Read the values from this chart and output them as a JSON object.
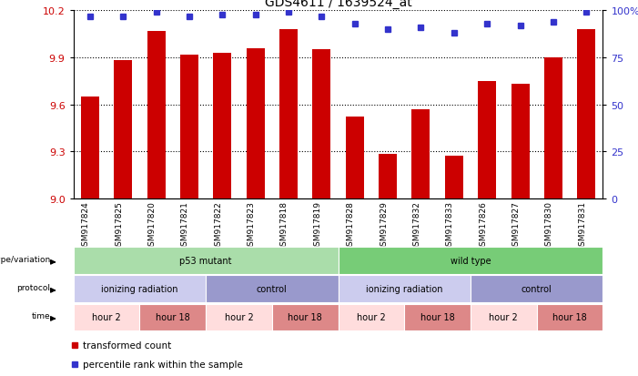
{
  "title": "GDS4611 / 1639524_at",
  "samples": [
    "GSM917824",
    "GSM917825",
    "GSM917820",
    "GSM917821",
    "GSM917822",
    "GSM917823",
    "GSM917818",
    "GSM917819",
    "GSM917828",
    "GSM917829",
    "GSM917832",
    "GSM917833",
    "GSM917826",
    "GSM917827",
    "GSM917830",
    "GSM917831"
  ],
  "bar_values": [
    9.65,
    9.88,
    10.07,
    9.92,
    9.93,
    9.96,
    10.08,
    9.95,
    9.52,
    9.28,
    9.57,
    9.27,
    9.75,
    9.73,
    9.9,
    10.08
  ],
  "percentile_values": [
    97,
    97,
    99,
    97,
    98,
    98,
    99,
    97,
    93,
    90,
    91,
    88,
    93,
    92,
    94,
    99
  ],
  "y_min": 9.0,
  "y_max": 10.2,
  "y_ticks": [
    9.0,
    9.3,
    9.6,
    9.9,
    10.2
  ],
  "right_y_ticks": [
    0,
    25,
    50,
    75,
    100
  ],
  "right_y_labels": [
    "0",
    "25",
    "50",
    "75",
    "100%"
  ],
  "bar_color": "#cc0000",
  "dot_color": "#3333cc",
  "background_color": "#ffffff",
  "genotype_groups": [
    {
      "text": "p53 mutant",
      "start": 0,
      "end": 8,
      "color": "#aaddaa"
    },
    {
      "text": "wild type",
      "start": 8,
      "end": 16,
      "color": "#77cc77"
    }
  ],
  "protocol_groups": [
    {
      "text": "ionizing radiation",
      "start": 0,
      "end": 4,
      "color": "#ccccee"
    },
    {
      "text": "control",
      "start": 4,
      "end": 8,
      "color": "#9999cc"
    },
    {
      "text": "ionizing radiation",
      "start": 8,
      "end": 12,
      "color": "#ccccee"
    },
    {
      "text": "control",
      "start": 12,
      "end": 16,
      "color": "#9999cc"
    }
  ],
  "time_groups": [
    {
      "text": "hour 2",
      "start": 0,
      "end": 2,
      "color": "#ffdddd"
    },
    {
      "text": "hour 18",
      "start": 2,
      "end": 4,
      "color": "#dd8888"
    },
    {
      "text": "hour 2",
      "start": 4,
      "end": 6,
      "color": "#ffdddd"
    },
    {
      "text": "hour 18",
      "start": 6,
      "end": 8,
      "color": "#dd8888"
    },
    {
      "text": "hour 2",
      "start": 8,
      "end": 10,
      "color": "#ffdddd"
    },
    {
      "text": "hour 18",
      "start": 10,
      "end": 12,
      "color": "#dd8888"
    },
    {
      "text": "hour 2",
      "start": 12,
      "end": 14,
      "color": "#ffdddd"
    },
    {
      "text": "hour 18",
      "start": 14,
      "end": 16,
      "color": "#dd8888"
    }
  ],
  "row_labels": [
    "genotype/variation",
    "protocol",
    "time"
  ],
  "legend_items": [
    {
      "color": "#cc0000",
      "label": "transformed count"
    },
    {
      "color": "#3333cc",
      "label": "percentile rank within the sample"
    }
  ]
}
